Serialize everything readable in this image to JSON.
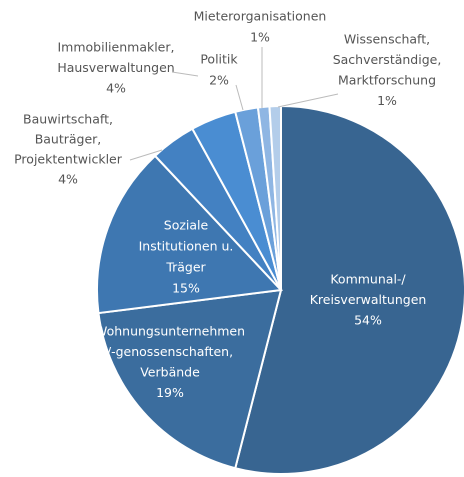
{
  "chart_data": {
    "type": "pie",
    "categories": [
      [
        "Kommunal-/",
        "Kreisverwaltungen"
      ],
      [
        "Wohnungsunternehmen",
        "/-genossenschaften,",
        "Verbände"
      ],
      [
        "Soziale",
        "Institutionen u.",
        "Träger"
      ],
      [
        "Bauwirtschaft,",
        "Bauträger,",
        "Projektentwickler"
      ],
      [
        "Immobilienmakler,",
        "Hausverwaltungen"
      ],
      [
        "Politik"
      ],
      [
        "Mieterorganisationen"
      ],
      [
        "Wissenschaft,",
        "Sachverständige,",
        "Marktforschung"
      ]
    ],
    "values": [
      54,
      19,
      15,
      4,
      4,
      2,
      1,
      1
    ],
    "value_labels": [
      "54%",
      "19%",
      "15%",
      "4%",
      "4%",
      "2%",
      "1%",
      "1%"
    ],
    "colors": [
      "#386591",
      "#3b6d9e",
      "#3e77b1",
      "#4381c2",
      "#4a8dd2",
      "#6aa0da",
      "#8fb6e3",
      "#b3cdea"
    ]
  }
}
